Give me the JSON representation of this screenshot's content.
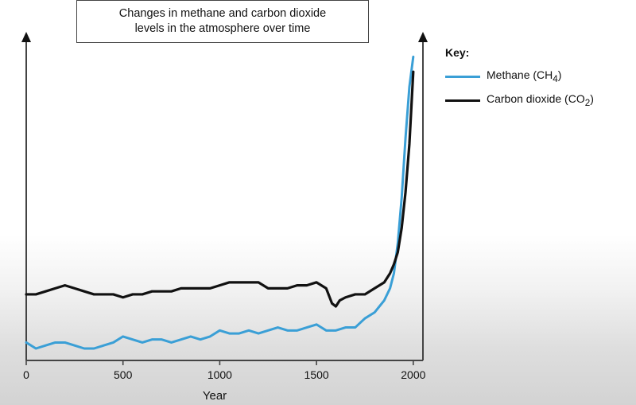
{
  "chart_data": {
    "type": "line",
    "title": "Changes in methane and carbon dioxide levels in the atmosphere over time",
    "title_lines": [
      "Changes in methane and carbon dioxide",
      "levels in the atmosphere over time"
    ],
    "xlabel": "Year",
    "ylabel": "",
    "xlim": [
      0,
      2050
    ],
    "ylim": [
      0,
      100
    ],
    "x_ticks": [
      0,
      500,
      1000,
      1500,
      2000
    ],
    "x_tick_labels": [
      "0",
      "500",
      "1000",
      "1500",
      "2000"
    ],
    "legend": {
      "title": "Key:",
      "placement": "top-right"
    },
    "series": [
      {
        "name": "Methane (CH4)",
        "label_main": "Methane (CH",
        "label_sub": "4",
        "label_end": ")",
        "color": "#3a9fd6",
        "x": [
          0,
          50,
          100,
          150,
          200,
          250,
          300,
          350,
          400,
          450,
          500,
          550,
          600,
          650,
          700,
          750,
          800,
          850,
          900,
          950,
          1000,
          1050,
          1100,
          1150,
          1200,
          1250,
          1300,
          1350,
          1400,
          1450,
          1500,
          1550,
          1600,
          1650,
          1700,
          1750,
          1800,
          1850,
          1880,
          1900,
          1920,
          1940,
          1960,
          1980,
          2000
        ],
        "values": [
          2,
          0,
          1,
          2,
          2,
          1,
          0,
          0,
          1,
          2,
          4,
          3,
          2,
          3,
          3,
          2,
          3,
          4,
          3,
          4,
          6,
          5,
          5,
          6,
          5,
          6,
          7,
          6,
          6,
          7,
          8,
          6,
          6,
          7,
          7,
          10,
          12,
          16,
          20,
          25,
          35,
          50,
          70,
          87,
          97
        ]
      },
      {
        "name": "Carbon dioxide (CO2)",
        "label_main": "Carbon dioxide (CO",
        "label_sub": "2",
        "label_end": ")",
        "color": "#111111",
        "x": [
          0,
          50,
          100,
          150,
          200,
          250,
          300,
          350,
          400,
          450,
          500,
          550,
          600,
          650,
          700,
          750,
          800,
          850,
          900,
          950,
          1000,
          1050,
          1100,
          1150,
          1200,
          1250,
          1300,
          1350,
          1400,
          1450,
          1500,
          1550,
          1580,
          1600,
          1620,
          1650,
          1700,
          1750,
          1800,
          1850,
          1880,
          1900,
          1920,
          1940,
          1960,
          1980,
          2000
        ],
        "values": [
          18,
          18,
          19,
          20,
          21,
          20,
          19,
          18,
          18,
          18,
          17,
          18,
          18,
          19,
          19,
          19,
          20,
          20,
          20,
          20,
          21,
          22,
          22,
          22,
          22,
          20,
          20,
          20,
          21,
          21,
          22,
          20,
          15,
          14,
          16,
          17,
          18,
          18,
          20,
          22,
          25,
          28,
          32,
          40,
          52,
          68,
          92
        ]
      }
    ]
  }
}
